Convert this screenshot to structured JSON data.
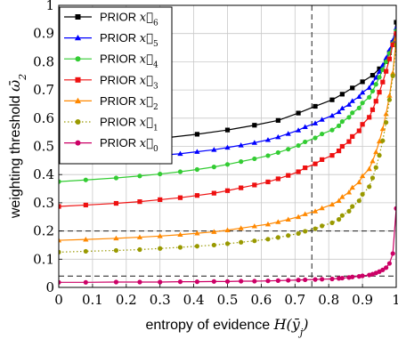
{
  "chart_data": {
    "type": "line",
    "xlabel": "entropy of evidence H(ȳj)",
    "ylabel": "weighting threshold ω̄2",
    "xlim": [
      0,
      1
    ],
    "ylim": [
      0,
      1
    ],
    "grid": true,
    "legend_position": "top-left",
    "x_ticks": [
      "0",
      "0.1",
      "0.2",
      "0.3",
      "0.4",
      "0.5",
      "0.6",
      "0.7",
      "0.8",
      "0.9",
      "1"
    ],
    "y_ticks": [
      "0",
      "0.1",
      "0.2",
      "0.3",
      "0.4",
      "0.5",
      "0.6",
      "0.7",
      "0.8",
      "0.9",
      "1"
    ],
    "reference_lines": {
      "vertical_x": 0.75,
      "horizontal_y": [
        0.2,
        0.04
      ]
    },
    "series": [
      {
        "name": "PRIOR x6",
        "color": "#000000",
        "marker": "square",
        "line_style": "solid",
        "x": [
          0,
          0.17,
          0.3,
          0.41,
          0.5,
          0.58,
          0.65,
          0.71,
          0.76,
          0.81,
          0.84,
          0.87,
          0.9,
          0.93,
          0.95,
          0.97,
          0.98,
          0.99,
          1.0
        ],
        "y": [
          0.5,
          0.513,
          0.528,
          0.543,
          0.558,
          0.575,
          0.592,
          0.618,
          0.642,
          0.665,
          0.685,
          0.707,
          0.729,
          0.752,
          0.775,
          0.8,
          0.832,
          0.868,
          0.94
        ]
      },
      {
        "name": "PRIOR x5",
        "color": "#0000ff",
        "marker": "triangle",
        "line_style": "solid",
        "x": [
          0,
          0.08,
          0.17,
          0.24,
          0.3,
          0.36,
          0.41,
          0.46,
          0.5,
          0.54,
          0.58,
          0.62,
          0.65,
          0.68,
          0.71,
          0.73,
          0.76,
          0.78,
          0.81,
          0.83,
          0.84,
          0.86,
          0.87,
          0.89,
          0.9,
          0.92,
          0.93,
          0.94,
          0.95,
          0.96,
          0.97,
          0.98,
          0.99,
          1.0
        ],
        "y": [
          0.445,
          0.45,
          0.457,
          0.462,
          0.468,
          0.474,
          0.481,
          0.488,
          0.496,
          0.504,
          0.513,
          0.523,
          0.533,
          0.545,
          0.557,
          0.569,
          0.582,
          0.595,
          0.609,
          0.622,
          0.635,
          0.648,
          0.661,
          0.676,
          0.691,
          0.708,
          0.725,
          0.744,
          0.765,
          0.788,
          0.813,
          0.842,
          0.876,
          0.92
        ]
      },
      {
        "name": "PRIOR x4",
        "color": "#33cc33",
        "marker": "circle",
        "line_style": "solid",
        "x": [
          0,
          0.08,
          0.17,
          0.24,
          0.3,
          0.36,
          0.41,
          0.46,
          0.5,
          0.54,
          0.58,
          0.62,
          0.65,
          0.68,
          0.71,
          0.73,
          0.76,
          0.78,
          0.81,
          0.83,
          0.84,
          0.86,
          0.87,
          0.89,
          0.9,
          0.92,
          0.93,
          0.94,
          0.95,
          0.96,
          0.97,
          0.98,
          0.99,
          1.0
        ],
        "y": [
          0.375,
          0.381,
          0.388,
          0.395,
          0.402,
          0.41,
          0.418,
          0.427,
          0.436,
          0.446,
          0.456,
          0.467,
          0.478,
          0.49,
          0.503,
          0.516,
          0.53,
          0.544,
          0.558,
          0.573,
          0.588,
          0.603,
          0.619,
          0.636,
          0.654,
          0.674,
          0.696,
          0.72,
          0.745,
          0.772,
          0.8,
          0.83,
          0.865,
          0.91
        ]
      },
      {
        "name": "PRIOR x3",
        "color": "#ee1111",
        "marker": "square",
        "line_style": "solid",
        "x": [
          0,
          0.08,
          0.17,
          0.24,
          0.3,
          0.36,
          0.41,
          0.46,
          0.5,
          0.54,
          0.58,
          0.62,
          0.65,
          0.68,
          0.71,
          0.73,
          0.76,
          0.78,
          0.81,
          0.83,
          0.84,
          0.86,
          0.87,
          0.89,
          0.9,
          0.92,
          0.93,
          0.94,
          0.95,
          0.96,
          0.97,
          0.98,
          0.99,
          1.0
        ],
        "y": [
          0.287,
          0.292,
          0.298,
          0.304,
          0.311,
          0.318,
          0.326,
          0.334,
          0.343,
          0.353,
          0.363,
          0.374,
          0.385,
          0.397,
          0.41,
          0.424,
          0.438,
          0.453,
          0.468,
          0.484,
          0.5,
          0.517,
          0.535,
          0.555,
          0.578,
          0.603,
          0.63,
          0.66,
          0.692,
          0.728,
          0.766,
          0.81,
          0.86,
          0.9
        ]
      },
      {
        "name": "PRIOR x2",
        "color": "#ff8800",
        "marker": "triangle",
        "line_style": "solid",
        "x": [
          0,
          0.08,
          0.17,
          0.24,
          0.3,
          0.36,
          0.41,
          0.46,
          0.5,
          0.54,
          0.58,
          0.62,
          0.65,
          0.68,
          0.71,
          0.73,
          0.76,
          0.78,
          0.81,
          0.83,
          0.84,
          0.86,
          0.87,
          0.89,
          0.9,
          0.92,
          0.93,
          0.94,
          0.95,
          0.96,
          0.97,
          0.98,
          0.99,
          1.0
        ],
        "y": [
          0.167,
          0.17,
          0.174,
          0.178,
          0.182,
          0.187,
          0.192,
          0.197,
          0.203,
          0.21,
          0.217,
          0.224,
          0.232,
          0.241,
          0.25,
          0.26,
          0.27,
          0.281,
          0.294,
          0.307,
          0.321,
          0.337,
          0.354,
          0.373,
          0.395,
          0.42,
          0.448,
          0.48,
          0.518,
          0.562,
          0.615,
          0.68,
          0.76,
          0.88
        ]
      },
      {
        "name": "PRIOR x1",
        "color": "#999900",
        "marker": "circle",
        "line_style": "dotted",
        "x": [
          0,
          0.08,
          0.17,
          0.24,
          0.3,
          0.36,
          0.41,
          0.46,
          0.5,
          0.54,
          0.58,
          0.62,
          0.65,
          0.68,
          0.71,
          0.73,
          0.76,
          0.78,
          0.81,
          0.83,
          0.84,
          0.86,
          0.87,
          0.89,
          0.9,
          0.92,
          0.93,
          0.94,
          0.95,
          0.96,
          0.97,
          0.98,
          0.99,
          1.0
        ],
        "y": [
          0.125,
          0.128,
          0.131,
          0.134,
          0.138,
          0.142,
          0.146,
          0.15,
          0.155,
          0.16,
          0.165,
          0.171,
          0.177,
          0.184,
          0.191,
          0.199,
          0.208,
          0.218,
          0.229,
          0.241,
          0.255,
          0.27,
          0.287,
          0.307,
          0.33,
          0.357,
          0.388,
          0.425,
          0.468,
          0.52,
          0.585,
          0.665,
          0.75,
          0.86
        ]
      },
      {
        "name": "PRIOR x0",
        "color": "#cc0066",
        "marker": "circle",
        "line_style": "solid",
        "x": [
          0,
          0.08,
          0.17,
          0.24,
          0.3,
          0.36,
          0.41,
          0.46,
          0.5,
          0.54,
          0.58,
          0.62,
          0.65,
          0.68,
          0.71,
          0.73,
          0.76,
          0.78,
          0.81,
          0.83,
          0.84,
          0.86,
          0.87,
          0.89,
          0.9,
          0.92,
          0.93,
          0.94,
          0.95,
          0.96,
          0.97,
          0.98,
          0.99,
          1.0
        ],
        "y": [
          0.018,
          0.018,
          0.019,
          0.019,
          0.019,
          0.02,
          0.02,
          0.021,
          0.021,
          0.022,
          0.022,
          0.023,
          0.024,
          0.025,
          0.026,
          0.027,
          0.028,
          0.029,
          0.03,
          0.032,
          0.033,
          0.035,
          0.037,
          0.039,
          0.041,
          0.044,
          0.047,
          0.051,
          0.056,
          0.062,
          0.07,
          0.085,
          0.12,
          0.28
        ]
      }
    ]
  }
}
